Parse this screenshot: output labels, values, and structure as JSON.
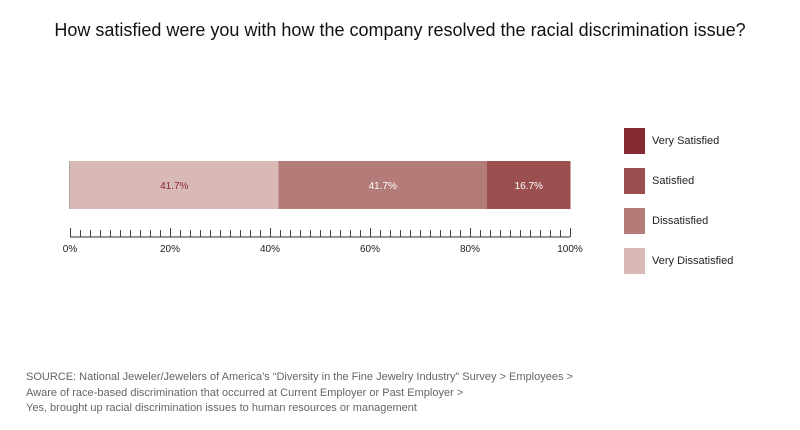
{
  "chart_data": {
    "type": "bar",
    "orientation": "horizontal",
    "stacked": true,
    "title": "How satisfied were you with how the company resolved the racial discrimination issue?",
    "xlim": [
      0,
      100
    ],
    "x_ticks": [
      "0%",
      "20%",
      "40%",
      "60%",
      "80%",
      "100%"
    ],
    "minor_tick_step": 2,
    "grid": false,
    "legend_position": "right",
    "segments": [
      {
        "name": "Very Dissatisfied",
        "value": 41.7,
        "label": "41.7%",
        "color": "#d9b9b5",
        "label_color": "#8b2a33"
      },
      {
        "name": "Dissatisfied",
        "value": 41.7,
        "label": "41.7%",
        "color": "#b47c78",
        "label_color": "#ffffff"
      },
      {
        "name": "Satisfied",
        "value": 16.7,
        "label": "16.7%",
        "color": "#9b4f4e",
        "label_color": "#ffffff"
      }
    ],
    "legend": [
      {
        "name": "Very Satisfied",
        "color": "#832a33"
      },
      {
        "name": "Satisfied",
        "color": "#9b4f4e"
      },
      {
        "name": "Dissatisfied",
        "color": "#b47c78"
      },
      {
        "name": "Very Dissatisfied",
        "color": "#d9b9b5"
      }
    ]
  },
  "source": {
    "line1": "SOURCE: National Jeweler/Jewelers of America’s “Diversity in the Fine Jewelry Industry” Survey > Employees >",
    "line2": "Aware of race-based discrimination that occurred at Current Employer or Past Employer >",
    "line3": "Yes, brought up racial discrimination issues to human resources or management"
  }
}
